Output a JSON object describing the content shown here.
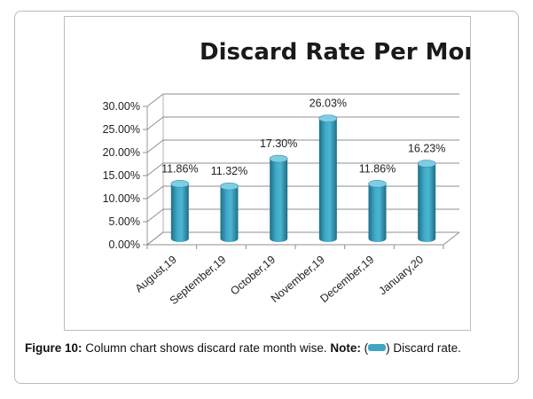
{
  "chart_data": {
    "type": "bar",
    "title": "Discard Rate Per Month",
    "categories": [
      "August,19",
      "September,19",
      "October,19",
      "November,19",
      "December,19",
      "January,20"
    ],
    "series": [
      {
        "name": "Discard rate",
        "values": [
          11.86,
          11.32,
          17.3,
          26.03,
          11.86,
          16.23
        ]
      }
    ],
    "data_labels": [
      "11.86%",
      "11.32%",
      "17.30%",
      "26.03%",
      "11.86%",
      "16.23%"
    ],
    "y_ticks": [
      "0.00%",
      "5.00%",
      "10.00%",
      "15.00%",
      "20.00%",
      "25.00%",
      "30.00%"
    ],
    "ylim": [
      0,
      30
    ],
    "grid": true,
    "style": "3d-cylinder",
    "bar_color": "#3fa5c3"
  },
  "caption": {
    "figure_label": "Figure 10:",
    "text": " Column chart shows discard rate month wise. ",
    "note_label": "Note:",
    "legend_open": " (",
    "legend_close": ") Discard rate."
  }
}
